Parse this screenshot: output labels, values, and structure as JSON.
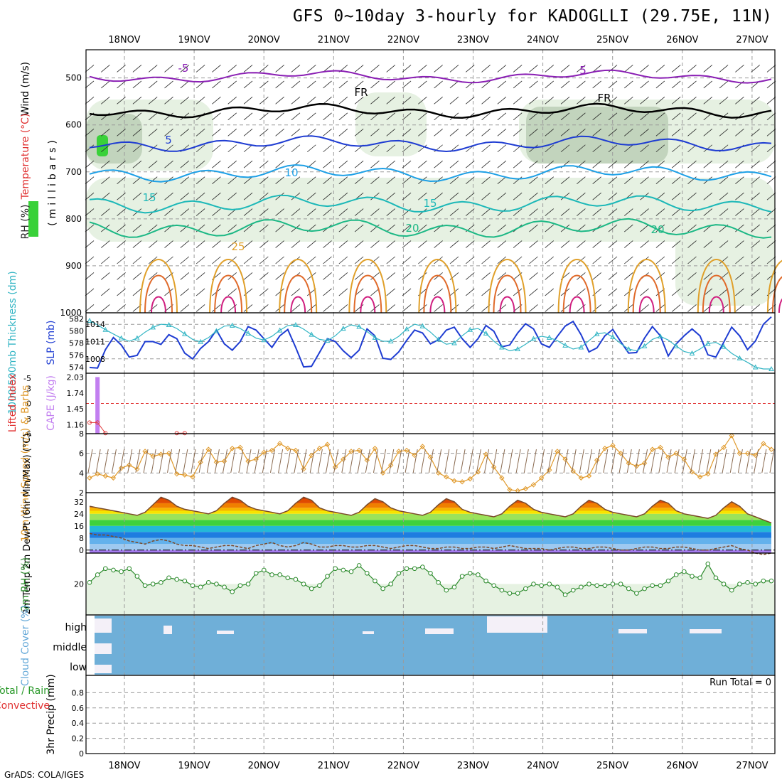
{
  "title": "GFS 0~10day 3-hourly for KADOGLLI (29.75E, 11N)",
  "footer": "GrADS: COLA/IGES",
  "dates": [
    "18NOV",
    "19NOV",
    "20NOV",
    "21NOV",
    "22NOV",
    "23NOV",
    "24NOV",
    "25NOV",
    "26NOV",
    "27NOV"
  ],
  "colors": {
    "grid": "#9a9a9a",
    "frame": "#000000",
    "cloud": "#6fafd8",
    "rh_fill": "#e6f2e2",
    "rh_line": "#2b8a2b",
    "slp": "#1e3cd2",
    "thick": "#33b5c4",
    "wind": "#e0992a",
    "cape": "#c27ff0",
    "lifted": "#e23c3c",
    "temp_top": "#7a4a2a",
    "dew": "#7a4a2a"
  },
  "chart_data": [
    {
      "type": "contour",
      "panel": "upper-air",
      "ylabel": "(millibars)",
      "side_labels": [
        "Wind (m/s)",
        "Temperature (°C)",
        "RH (%)"
      ],
      "yticks": [
        500,
        600,
        700,
        800,
        900,
        1000
      ],
      "ylim": [
        1000,
        440
      ],
      "contour_labels": [
        {
          "text": "-5",
          "color": "#8a1fb4"
        },
        {
          "text": "5",
          "color": "#8a1fb4"
        },
        {
          "text": "FR",
          "color": "#000000"
        },
        {
          "text": "FR",
          "color": "#000000"
        },
        {
          "text": "5",
          "color": "#1e3cd2"
        },
        {
          "text": "10",
          "color": "#1ea0e6"
        },
        {
          "text": "15",
          "color": "#1cb8b8"
        },
        {
          "text": "15",
          "color": "#1cb8b8"
        },
        {
          "text": "20",
          "color": "#1cb885"
        },
        {
          "text": "20",
          "color": "#1cb885"
        },
        {
          "text": "25",
          "color": "#e0a02a"
        }
      ],
      "isotherms": [
        {
          "name": "-5",
          "color": "#8a1fb4",
          "level": 497
        },
        {
          "name": "FR",
          "color": "#000000",
          "level": 570
        },
        {
          "name": "5",
          "color": "#1e3cd2",
          "level": 640
        },
        {
          "name": "10",
          "color": "#1ea0e6",
          "level": 703
        },
        {
          "name": "15",
          "color": "#1cb8b8",
          "level": 768
        },
        {
          "name": "20",
          "color": "#1cb885",
          "level": 820
        }
      ]
    },
    {
      "type": "line",
      "panel": "slp-thickness",
      "ylabel_left": "1000-500mb Thickness (dm)",
      "ylabel_right": "SLP (mb)",
      "left_ticks": [
        574,
        576,
        578,
        580,
        582
      ],
      "right_ticks": [
        1008,
        1011,
        1014
      ],
      "series": [
        {
          "name": "SLP (mb)",
          "values": [
            1006.5,
            1006.4,
            1009.6,
            1011.7,
            1010.4,
            1008.3,
            1008.6,
            1011.0,
            1011.0,
            1010.5,
            1012.2,
            1011.5,
            1009.0,
            1008.0,
            1009.8,
            1011.0,
            1013.0,
            1010.6,
            1009.5,
            1011.0,
            1013.6,
            1013.0,
            1011.5,
            1010.0,
            1012.0,
            1013.1,
            1010.0,
            1006.6,
            1006.7,
            1009.1,
            1011.5,
            1011.0,
            1009.4,
            1008.2,
            1009.5,
            1013.2,
            1012.0,
            1008.1,
            1007.9,
            1009.2,
            1011.2,
            1013.0,
            1012.5,
            1010.6,
            1011.3,
            1013.0,
            1013.5,
            1011.5,
            1010.0,
            1011.5,
            1013.8,
            1012.8,
            1010.1,
            1010.4,
            1012.5,
            1014.1,
            1013.2,
            1010.6,
            1010.0,
            1011.9,
            1013.7,
            1014.5,
            1012.2,
            1009.2,
            1009.9,
            1012.0,
            1013.1,
            1011.0,
            1009.0,
            1009.1,
            1011.6,
            1013.6,
            1012.0,
            1008.5,
            1010.6,
            1012.0,
            1013.2,
            1012.0,
            1008.7,
            1008.3,
            1010.9,
            1013.5,
            1012.0,
            1009.6,
            1011.1,
            1014.0,
            1015.3
          ]
        },
        {
          "name": "1000-500mb Thickness (dm)",
          "values": [
            581.7,
            581.0,
            580.2,
            579.5,
            578.8,
            578.3,
            578.8,
            579.8,
            580.6,
            581.1,
            581.0,
            580.4,
            579.5,
            578.6,
            578.2,
            578.9,
            580.0,
            580.8,
            580.9,
            580.4,
            579.6,
            578.8,
            578.5,
            579.1,
            580.1,
            580.9,
            581.0,
            580.3,
            579.4,
            578.6,
            578.4,
            579.2,
            580.4,
            581.0,
            580.7,
            579.9,
            578.9,
            578.3,
            578.3,
            579.1,
            580.3,
            581.1,
            580.8,
            579.8,
            578.6,
            577.8,
            578.0,
            579.2,
            580.2,
            580.4,
            579.6,
            578.3,
            577.3,
            576.7,
            577.0,
            577.8,
            578.7,
            579.1,
            578.9,
            578.4,
            577.6,
            577.0,
            577.3,
            578.4,
            579.5,
            579.7,
            579.0,
            577.9,
            577.0,
            576.7,
            577.5,
            578.6,
            579.1,
            578.5,
            577.5,
            576.6,
            576.3,
            577.0,
            577.9,
            578.1,
            577.4,
            576.3,
            575.5,
            574.8,
            574.0,
            573.7,
            573.7
          ]
        }
      ]
    },
    {
      "type": "bar",
      "panel": "cape-lifted",
      "ylabel_left": "Lifted Index",
      "ylabel_right": "CAPE (J/kg)",
      "left_ticks": [
        -5,
        -3,
        0,
        3,
        6
      ],
      "right_ticks": [
        1.16,
        1.45,
        1.74,
        2.03
      ],
      "series": [
        {
          "name": "CAPE (J/kg)",
          "values": [
            0,
            2.03,
            0,
            0,
            0,
            0,
            0,
            0,
            0,
            0,
            0,
            0,
            0,
            0,
            0,
            0,
            0,
            0,
            0,
            0,
            0,
            0,
            0,
            0,
            0,
            0,
            0,
            0,
            0,
            0,
            0,
            0,
            0,
            0,
            0,
            0,
            0,
            0,
            0,
            0,
            0,
            0,
            0,
            0,
            0,
            0,
            0,
            0,
            0,
            0,
            0,
            0,
            0,
            0,
            0,
            0,
            0,
            0,
            0,
            0,
            0,
            0,
            0,
            0,
            0,
            0,
            0,
            0,
            0,
            0,
            0,
            0,
            0,
            0,
            0,
            0,
            0,
            0,
            0,
            0,
            0,
            0,
            0,
            0,
            0,
            0,
            0
          ]
        },
        {
          "name": "Lifted Index",
          "values": [
            3.8,
            3.8,
            5.9,
            null,
            null,
            null,
            null,
            null,
            null,
            null,
            null,
            5.9,
            5.9,
            null,
            null,
            null,
            null,
            null,
            null,
            null,
            null,
            null,
            null,
            null,
            null,
            null,
            null,
            null,
            null,
            null,
            null,
            null,
            null,
            null,
            null,
            null,
            null,
            null,
            null,
            null,
            null,
            null,
            null,
            null,
            null,
            null,
            null,
            null,
            null,
            null,
            null,
            null,
            null,
            null,
            null,
            null,
            null,
            null,
            null,
            null,
            null,
            null,
            null,
            null,
            null,
            null,
            null,
            null,
            null,
            null,
            null,
            null,
            null,
            null,
            null,
            null,
            null,
            null,
            null,
            null,
            null,
            null,
            null,
            null,
            null,
            null,
            null
          ]
        }
      ]
    },
    {
      "type": "line",
      "panel": "wind",
      "ylabel": "10m Wind Speed (m/s) & Barbs",
      "yticks": [
        2,
        4,
        6,
        8
      ],
      "ylim": [
        2,
        8
      ],
      "series": [
        {
          "name": "10m Wind Speed",
          "values": [
            3.5,
            3.9,
            3.7,
            3.5,
            4.5,
            4.8,
            4.4,
            6.2,
            5.7,
            5.9,
            6.0,
            3.9,
            3.8,
            3.6,
            5.1,
            6.4,
            5.1,
            5.2,
            6.5,
            6.6,
            5.2,
            5.4,
            6.1,
            6.3,
            7.0,
            6.5,
            6.3,
            4.4,
            5.8,
            6.5,
            6.9,
            4.6,
            5.4,
            6.2,
            6.3,
            5.3,
            6.5,
            4.0,
            4.8,
            6.2,
            6.3,
            5.8,
            6.7,
            5.6,
            4.0,
            3.6,
            3.2,
            3.1,
            3.4,
            4.1,
            5.9,
            4.6,
            3.5,
            2.3,
            2.2,
            2.4,
            2.8,
            3.5,
            4.3,
            6.2,
            5.4,
            4.2,
            3.5,
            3.7,
            5.3,
            6.5,
            6.8,
            6.0,
            5.0,
            4.7,
            5.0,
            6.4,
            6.6,
            5.6,
            6.0,
            5.4,
            4.1,
            3.6,
            3.9,
            5.9,
            6.6,
            7.8,
            6.0,
            6.0,
            5.8,
            7.0,
            6.4
          ]
        }
      ]
    },
    {
      "type": "area",
      "panel": "temperature",
      "ylabel": "2m Temp 2m DewPt (6hr Min/Max) (°C)",
      "yticks": [
        0,
        8,
        16,
        24,
        32
      ],
      "ylim": [
        -2,
        38
      ],
      "series": [
        {
          "name": "2m Temp",
          "values": [
            29,
            28,
            27,
            26,
            25,
            24,
            23,
            25,
            30,
            35,
            33,
            29,
            27,
            26,
            25,
            24,
            26,
            31,
            35,
            33,
            29,
            27,
            26,
            25,
            24,
            26,
            31,
            35,
            33,
            28,
            26,
            25,
            24,
            23,
            25,
            30,
            34,
            32,
            28,
            26,
            25,
            24,
            23,
            25,
            30,
            34,
            32,
            27,
            25,
            24,
            23,
            22,
            24,
            29,
            33,
            31,
            27,
            25,
            24,
            23,
            22,
            24,
            29,
            33,
            31,
            27,
            25,
            24,
            23,
            22,
            24,
            29,
            33,
            31,
            26,
            24,
            23,
            22,
            21,
            23,
            28,
            32,
            29,
            24,
            22,
            20,
            18
          ]
        },
        {
          "name": "2m DewPt",
          "values": [
            11,
            10,
            10,
            9,
            8,
            6,
            5,
            4,
            6,
            7,
            6,
            4,
            3,
            3,
            2,
            1,
            2,
            3,
            3,
            2,
            1,
            3,
            4,
            5,
            3,
            2,
            3,
            5,
            4,
            2,
            2,
            3,
            3,
            2,
            2,
            3,
            3,
            2,
            1,
            2,
            3,
            3,
            2,
            1,
            1,
            2,
            2,
            1,
            1,
            2,
            2,
            1,
            2,
            3,
            2,
            1,
            1,
            1,
            0,
            1,
            2,
            2,
            1,
            1,
            2,
            2,
            1,
            0,
            0,
            1,
            2,
            2,
            1,
            1,
            2,
            2,
            1,
            0,
            0,
            1,
            2,
            3,
            1,
            0,
            -2,
            -3,
            -2
          ]
        }
      ]
    },
    {
      "type": "area",
      "panel": "rh",
      "ylabel": "2m RH (%)",
      "yticks": [
        20
      ],
      "ylim": [
        0,
        40
      ],
      "series": [
        {
          "name": "2m RH",
          "values": [
            21,
            26,
            30,
            29,
            28,
            30,
            25,
            19,
            20,
            21,
            24,
            23,
            22,
            19,
            18,
            21,
            20,
            18,
            15,
            19,
            20,
            27,
            29,
            26,
            26,
            24,
            23,
            20,
            17,
            19,
            25,
            30,
            29,
            28,
            32,
            27,
            22,
            17,
            20,
            27,
            30,
            30,
            31,
            27,
            21,
            16,
            18,
            25,
            27,
            26,
            22,
            19,
            16,
            14,
            14,
            17,
            20,
            19,
            20,
            18,
            13,
            16,
            18,
            20,
            19,
            19,
            20,
            20,
            17,
            14,
            17,
            19,
            19,
            22,
            26,
            28,
            25,
            24,
            33,
            24,
            20,
            16,
            20,
            21,
            20,
            22,
            22
          ]
        }
      ]
    },
    {
      "type": "heatmap",
      "panel": "cloud-cover",
      "ylabel": "Cloud Cover (%)",
      "row_labels": [
        "high",
        "middle",
        "low"
      ]
    },
    {
      "type": "bar",
      "panel": "precip",
      "ylabel": "3hr Precip (mm)",
      "side_labels": [
        "Total / Rain",
        "Convective"
      ],
      "yticks": [
        0,
        0.2,
        0.4,
        0.6,
        0.8
      ],
      "ylim": [
        0,
        1
      ],
      "run_total": "Run Total = 0",
      "series": [
        {
          "name": "3hr Precip",
          "values": []
        }
      ]
    }
  ]
}
